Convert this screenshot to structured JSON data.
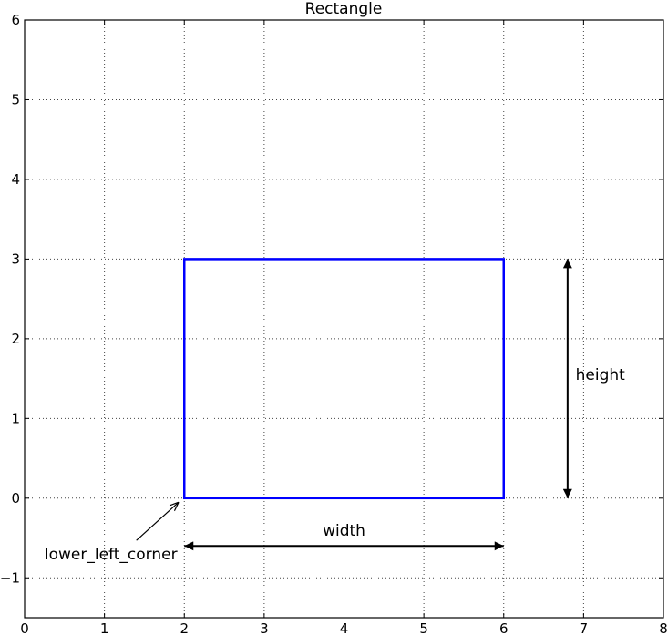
{
  "chart_data": {
    "type": "diagram",
    "title": "Rectangle",
    "xlim": [
      0,
      8
    ],
    "ylim": [
      -1.5,
      6
    ],
    "xticks": [
      "0",
      "1",
      "2",
      "3",
      "4",
      "5",
      "6",
      "7",
      "8"
    ],
    "yticks": [
      "−1",
      "0",
      "1",
      "2",
      "3",
      "4",
      "5",
      "6"
    ],
    "grid": true,
    "rectangle": {
      "x": 2,
      "y": 0,
      "width": 4,
      "height": 3,
      "edge_color": "#0000ff"
    },
    "annotations": [
      {
        "text": "width",
        "x": 4,
        "y": -0.4,
        "arrow_from": [
          2,
          -0.6
        ],
        "arrow_to": [
          6,
          -0.6
        ],
        "style": "two-headed"
      },
      {
        "text": "height",
        "x": 6.9,
        "y": 1.55,
        "arrow_from": [
          6.8,
          0
        ],
        "arrow_to": [
          6.8,
          3
        ],
        "style": "two-headed"
      },
      {
        "text": "lower_left_corner",
        "x": 0.25,
        "y": -0.7,
        "arrow_from": [
          1.4,
          -0.53
        ],
        "arrow_to": [
          1.93,
          -0.05
        ],
        "style": "single-thin"
      }
    ]
  }
}
